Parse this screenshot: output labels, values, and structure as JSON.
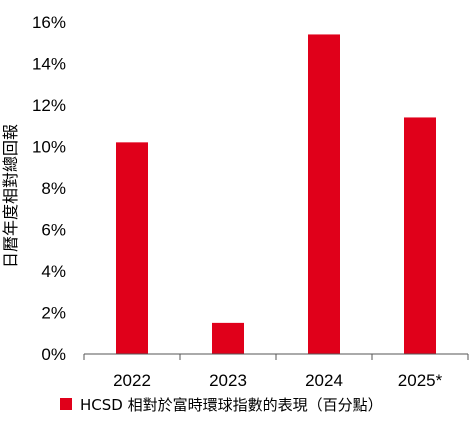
{
  "chart_data": {
    "type": "bar",
    "categories": [
      "2022",
      "2023",
      "2024",
      "2025*"
    ],
    "series": [
      {
        "name": "HCSD 相對於富時環球指數的表現（百分點）",
        "values": [
          10.2,
          1.5,
          15.4,
          11.4
        ],
        "color": "#e0001a"
      }
    ],
    "ylabel": "日曆年度相對總回報",
    "xlabel": "",
    "ylim": [
      0,
      16
    ],
    "yticks": [
      "0%",
      "2%",
      "4%",
      "6%",
      "8%",
      "10%",
      "12%",
      "14%",
      "16%"
    ],
    "grid": false,
    "legend_position": "bottom"
  }
}
